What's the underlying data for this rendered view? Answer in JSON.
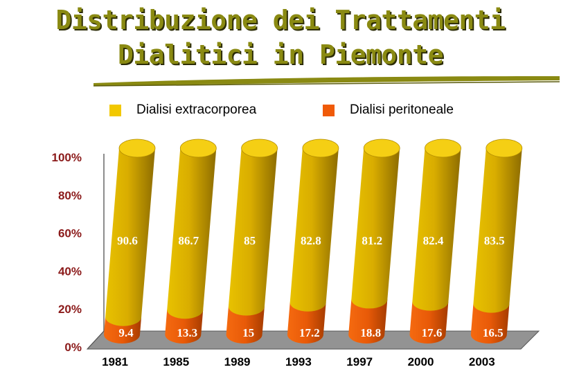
{
  "title_line1": "Distribuzione dei Trattamenti",
  "title_line2": "Dialitici in Piemonte",
  "colors": {
    "extracorporea": "#d4aa00",
    "peritoneale": "#ee5a08",
    "title": "#8a8a12",
    "floor": "#8f8f8f"
  },
  "chart_data": {
    "type": "bar",
    "stacked": true,
    "percent_stacked": true,
    "title": "Distribuzione dei Trattamenti Dialitici in Piemonte",
    "categories": [
      "1981",
      "1985",
      "1989",
      "1993",
      "1997",
      "2000",
      "2003"
    ],
    "series": [
      {
        "name": "Dialisi peritoneale",
        "values": [
          9.4,
          13.3,
          15,
          17.2,
          18.8,
          17.6,
          16.5
        ],
        "labels": [
          "9.4",
          "13.3",
          "15",
          "17.2",
          "18.8",
          "17.6",
          "16.5"
        ]
      },
      {
        "name": "Dialisi extracorporea",
        "values": [
          90.6,
          86.7,
          85,
          82.8,
          81.2,
          82.4,
          83.5
        ],
        "labels": [
          "90.6",
          "86.7",
          "85",
          "82.8",
          "81.2",
          "82.4",
          "83.5"
        ]
      }
    ],
    "yticks": [
      "0%",
      "20%",
      "40%",
      "60%",
      "80%",
      "100%"
    ],
    "ylim": [
      0,
      100
    ],
    "legend": "top",
    "grid": false
  }
}
